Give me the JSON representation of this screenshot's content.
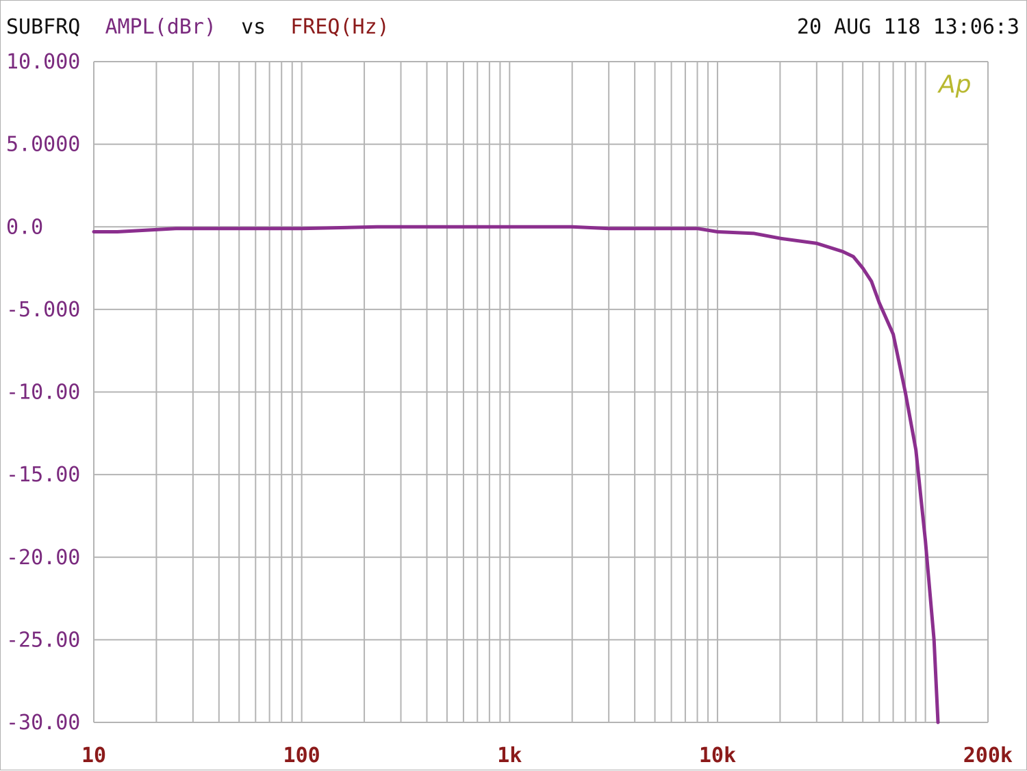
{
  "header": {
    "channel": "SUBFRQ",
    "y_quantity": "AMPL(dBr)",
    "vs": "vs",
    "x_quantity": "FREQ(Hz)",
    "timestamp": "20 AUG 118 13:06:3"
  },
  "logo_text": "Ap",
  "colors": {
    "trace": "#8b2f8e",
    "y_labels": "#7a2a7e",
    "x_labels": "#8b1a1a",
    "x_quantity": "#8b1a1a",
    "grid": "#b4b4b4",
    "logo": "#b8b830",
    "header_text": "#111111"
  },
  "chart_data": {
    "type": "line",
    "x_scale": "log",
    "xlim": [
      10,
      200000
    ],
    "ylim": [
      -30,
      10
    ],
    "grid": true,
    "x_tick_values": [
      10,
      100,
      1000,
      10000,
      200000
    ],
    "x_tick_labels": [
      "10",
      "100",
      "1k",
      "10k",
      "200k"
    ],
    "y_tick_values": [
      10,
      5,
      0,
      -5,
      -10,
      -15,
      -20,
      -25,
      -30
    ],
    "y_tick_labels": [
      "10.000",
      "5.0000",
      "0.0",
      "-5.000",
      "-10.00",
      "-15.00",
      "-20.00",
      "-25.00",
      "-30.00"
    ],
    "series": [
      {
        "x": [
          10,
          13,
          25,
          100,
          230,
          500,
          1000,
          2000,
          3000,
          8000,
          10000,
          15000,
          20000,
          30000,
          40000,
          45000,
          50000,
          55000,
          60000,
          70000,
          80000,
          90000,
          100000,
          110000,
          115000
        ],
        "y": [
          -0.3,
          -0.3,
          -0.1,
          -0.1,
          0.0,
          0.0,
          0.0,
          0.0,
          -0.1,
          -0.1,
          -0.3,
          -0.4,
          -0.7,
          -1.0,
          -1.5,
          -1.8,
          -2.5,
          -3.3,
          -4.6,
          -6.5,
          -10.0,
          -13.5,
          -19.0,
          -25.0,
          -30.0
        ]
      }
    ]
  }
}
